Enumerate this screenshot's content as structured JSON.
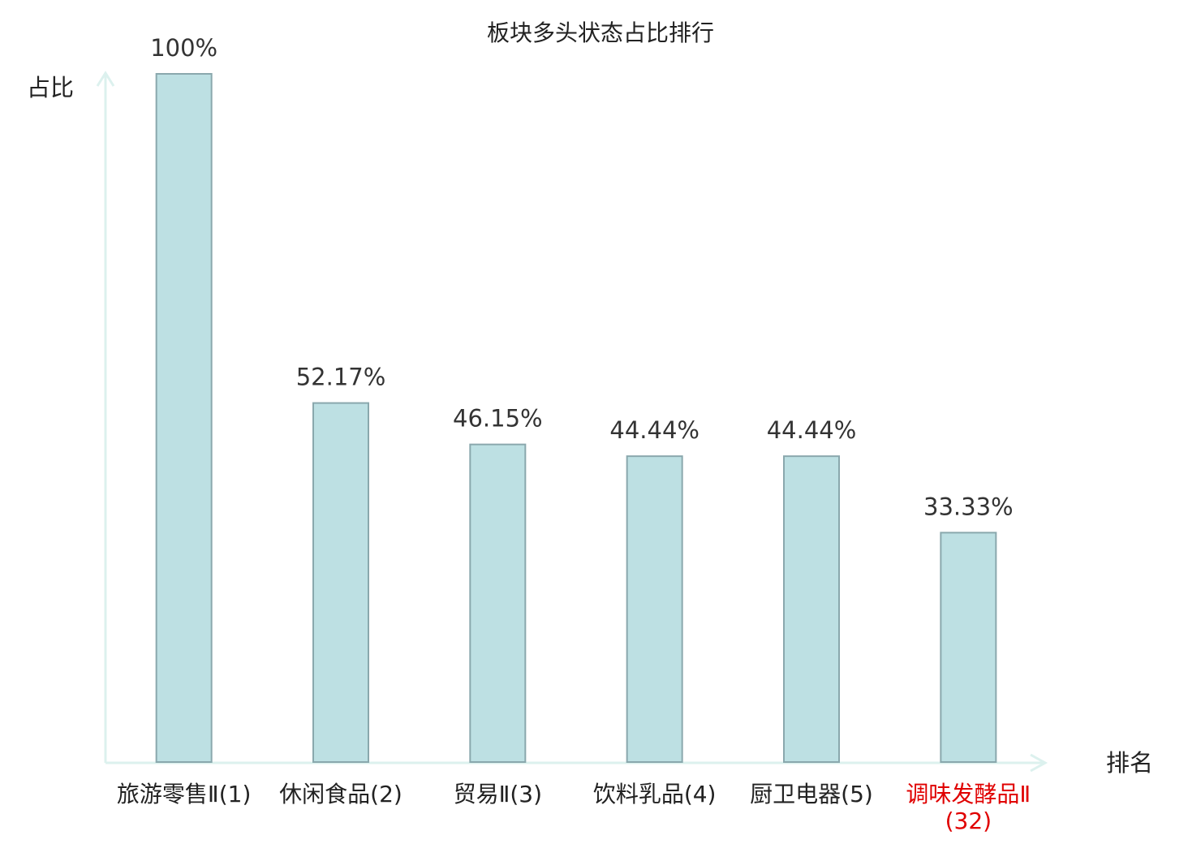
{
  "chart_data": {
    "type": "bar",
    "title": "板块多头状态占比排行",
    "y_label": "占比",
    "x_label": "排名",
    "categories": [
      "旅游零售Ⅱ(1)",
      "休闲食品(2)",
      "贸易Ⅱ(3)",
      "饮料乳品(4)",
      "厨卫电器(5)",
      "调味发酵品Ⅱ(32)"
    ],
    "category_colors": [
      "#222222",
      "#222222",
      "#222222",
      "#222222",
      "#222222",
      "#e00000"
    ],
    "values": [
      100,
      52.17,
      46.15,
      44.44,
      44.44,
      33.33
    ],
    "value_labels": [
      "100%",
      "52.17%",
      "46.15%",
      "44.44%",
      "44.44%",
      "33.33%"
    ],
    "color": "#bde0e3",
    "edge_color": "#8aa8ad",
    "ylim": [
      0,
      100
    ]
  }
}
